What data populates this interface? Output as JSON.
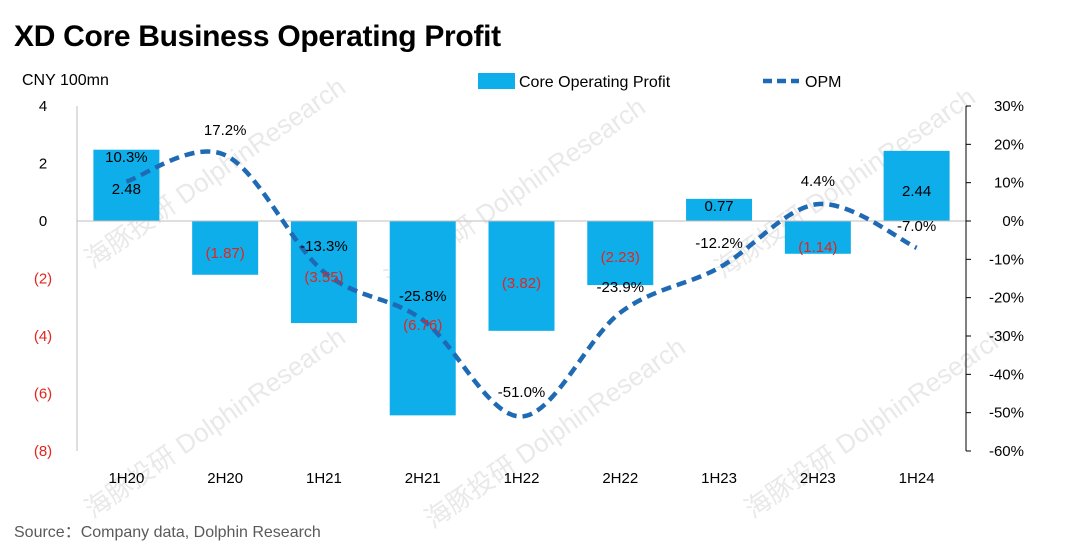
{
  "title": "XD Core Business Operating Profit",
  "unit_label": "CNY 100mn",
  "source": "Source：Company data, Dolphin Research",
  "watermark": "海豚投研 DolphinResearch",
  "colors": {
    "bar": "#0eaeeb",
    "line": "#1f6ab5",
    "negative_text": "#e2251e",
    "positive_text": "#000000"
  },
  "chart_data": {
    "type": "bar",
    "categories": [
      "1H20",
      "2H20",
      "1H21",
      "2H21",
      "1H22",
      "2H22",
      "1H23",
      "2H23",
      "1H24"
    ],
    "series": [
      {
        "name": "Core Operating Profit",
        "type": "bar",
        "axis": "left",
        "values": [
          2.48,
          -1.87,
          -3.55,
          -6.76,
          -3.82,
          -2.23,
          0.77,
          -1.14,
          2.44
        ],
        "labels": [
          "2.48",
          "(1.87)",
          "(3.55)",
          "(6.76)",
          "(3.82)",
          "(2.23)",
          "0.77",
          "(1.14)",
          "2.44"
        ]
      },
      {
        "name": "OPM",
        "type": "line",
        "style": "dashed",
        "axis": "right",
        "values": [
          10.3,
          17.2,
          -13.3,
          -25.8,
          -51.0,
          -23.9,
          -12.2,
          4.4,
          -7.0
        ],
        "labels": [
          "10.3%",
          "17.2%",
          "-13.3%",
          "-25.8%",
          "-51.0%",
          "-23.9%",
          "-12.2%",
          "4.4%",
          "-7.0%"
        ]
      }
    ],
    "y_left": {
      "lim": [
        -8,
        4
      ],
      "ticks": [
        4,
        2,
        0,
        -2,
        -4,
        -6,
        -8
      ],
      "tick_labels": [
        "4",
        "2",
        "0",
        "(2)",
        "(4)",
        "(6)",
        "(8)"
      ]
    },
    "y_right": {
      "lim": [
        -60,
        30
      ],
      "ticks": [
        30,
        20,
        10,
        0,
        -10,
        -20,
        -30,
        -40,
        -50,
        -60
      ],
      "tick_labels": [
        "30%",
        "20%",
        "10%",
        "0%",
        "-10%",
        "-20%",
        "-30%",
        "-40%",
        "-50%",
        "-60%"
      ]
    },
    "legend": {
      "position": "top",
      "entries": [
        "Core Operating Profit",
        "OPM"
      ]
    }
  }
}
